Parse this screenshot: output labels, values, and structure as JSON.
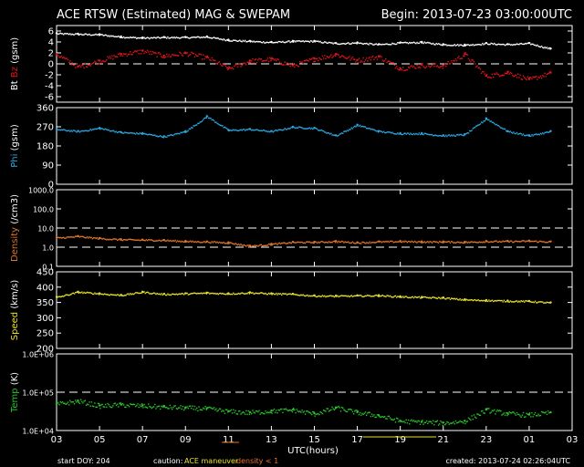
{
  "header": {
    "title": "ACE RTSW (Estimated) MAG & SWEPAM",
    "begin": "Begin: 2013-07-23 03:00:00UTC"
  },
  "footer": {
    "start_doy": "start DOY: 204",
    "caution_label": "caution:",
    "caution_maneuver": "ACE maneuver",
    "caution_density": "density < 1",
    "created": "created: 2013-07-24 02:26:04UTC"
  },
  "colors": {
    "bt": "#ffffff",
    "bz": "#e0141a",
    "phi": "#29a8e0",
    "density": "#e0742a",
    "speed": "#e8e22a",
    "temp": "#27c42a",
    "maneuver": "#e8e22a",
    "density_caution": "#e0742a",
    "frame": "#ffffff"
  },
  "chart_data": [
    {
      "type": "scatter",
      "name": "mag",
      "ylabel_parts": [
        {
          "text": "Bt",
          "color": "#ffffff"
        },
        {
          "text": "Bz",
          "color": "#e0141a"
        },
        {
          "text": "(gsm)",
          "color": "#ffffff"
        }
      ],
      "ylim": [
        -7,
        7
      ],
      "yticks": [
        -6,
        -4,
        -2,
        0,
        2,
        4,
        6
      ],
      "ytick_labels": [
        "-6",
        "-4",
        "-2",
        "0",
        "2",
        "4",
        "6"
      ],
      "dashed_lines": [
        0
      ],
      "series": [
        {
          "color_key": "bt",
          "x": [
            0,
            1,
            2,
            3,
            4,
            5,
            6,
            7,
            8,
            9,
            10,
            11,
            12,
            13,
            14,
            15,
            16,
            17,
            18,
            19,
            20,
            21,
            22,
            23
          ],
          "y": [
            5.6,
            5.5,
            5.4,
            5.0,
            4.8,
            4.9,
            4.9,
            5.0,
            4.4,
            4.2,
            4.0,
            4.2,
            4.2,
            3.8,
            3.9,
            3.6,
            3.9,
            4.0,
            3.6,
            3.5,
            3.8,
            3.6,
            3.8,
            2.8
          ]
        },
        {
          "color_key": "bz",
          "x": [
            0,
            1,
            2,
            3,
            4,
            5,
            6,
            7,
            8,
            9,
            10,
            11,
            12,
            13,
            14,
            15,
            16,
            17,
            18,
            19,
            20,
            21,
            22,
            23
          ],
          "y": [
            1.8,
            -0.5,
            0.6,
            1.8,
            2.4,
            1.5,
            2.0,
            1.2,
            -0.8,
            0.6,
            0.9,
            -0.3,
            1.0,
            1.8,
            0.7,
            1.4,
            -0.8,
            -0.2,
            -0.3,
            1.8,
            -2.2,
            -1.5,
            -2.8,
            -1.6
          ]
        }
      ]
    },
    {
      "type": "scatter",
      "name": "phi",
      "ylabel_parts": [
        {
          "text": "Phi",
          "color": "#29a8e0"
        },
        {
          "text": "(gsm)",
          "color": "#ffffff"
        }
      ],
      "ylim": [
        0,
        360
      ],
      "yticks": [
        0,
        90,
        180,
        270,
        360
      ],
      "ytick_labels": [
        "0",
        "90",
        "180",
        "270",
        "360"
      ],
      "dashed_lines": [],
      "series": [
        {
          "color_key": "phi",
          "x": [
            0,
            1,
            2,
            3,
            4,
            5,
            6,
            7,
            8,
            9,
            10,
            11,
            12,
            13,
            14,
            15,
            16,
            17,
            18,
            19,
            20,
            21,
            22,
            23
          ],
          "y": [
            260,
            250,
            265,
            245,
            240,
            225,
            250,
            320,
            255,
            260,
            250,
            270,
            265,
            230,
            280,
            250,
            240,
            240,
            230,
            235,
            310,
            250,
            230,
            250
          ]
        }
      ]
    },
    {
      "type": "scatter",
      "name": "density",
      "ylabel_parts": [
        {
          "text": "Density",
          "color": "#e0742a"
        },
        {
          "text": "(/cm3)",
          "color": "#ffffff"
        }
      ],
      "yscale": "log",
      "ylim": [
        0.1,
        1000
      ],
      "yticks": [
        0.1,
        1,
        10,
        100,
        1000
      ],
      "ytick_labels": [
        "0.1",
        "1.0",
        "10.0",
        "100.0",
        "1000.0"
      ],
      "dashed_lines": [
        1,
        10
      ],
      "series": [
        {
          "color_key": "density",
          "x": [
            0,
            1,
            2,
            3,
            4,
            5,
            6,
            7,
            8,
            9,
            10,
            11,
            12,
            13,
            14,
            15,
            16,
            17,
            18,
            19,
            20,
            21,
            22,
            23
          ],
          "y": [
            3.2,
            3.8,
            3.0,
            2.6,
            2.5,
            2.4,
            2.1,
            2.0,
            1.8,
            1.2,
            1.5,
            1.9,
            1.9,
            2.1,
            1.8,
            2.0,
            2.1,
            2.0,
            2.0,
            1.9,
            2.1,
            2.1,
            2.2,
            2.0
          ]
        }
      ]
    },
    {
      "type": "scatter",
      "name": "speed",
      "ylabel_parts": [
        {
          "text": "Speed",
          "color": "#e8e22a"
        },
        {
          "text": "(km/s)",
          "color": "#ffffff"
        }
      ],
      "ylim": [
        200,
        450
      ],
      "yticks": [
        200,
        250,
        300,
        350,
        400,
        450
      ],
      "ytick_labels": [
        "200",
        "250",
        "300",
        "350",
        "400",
        "450"
      ],
      "dashed_lines": [],
      "series": [
        {
          "color_key": "speed",
          "x": [
            0,
            1,
            2,
            3,
            4,
            5,
            6,
            7,
            8,
            9,
            10,
            11,
            12,
            13,
            14,
            15,
            16,
            17,
            18,
            19,
            20,
            21,
            22,
            23
          ],
          "y": [
            368,
            385,
            380,
            375,
            385,
            378,
            380,
            382,
            380,
            383,
            380,
            378,
            373,
            372,
            373,
            374,
            370,
            368,
            366,
            360,
            358,
            356,
            355,
            350
          ]
        }
      ]
    },
    {
      "type": "scatter",
      "name": "temp",
      "ylabel_parts": [
        {
          "text": "Temp",
          "color": "#27c42a"
        },
        {
          "text": "(K)",
          "color": "#ffffff"
        }
      ],
      "yscale": "log",
      "ylim": [
        10000,
        1000000
      ],
      "yticks": [
        10000,
        100000,
        1000000
      ],
      "ytick_labels": [
        "1.0E+04",
        "1.0E+05",
        "1.0E+06"
      ],
      "dashed_lines": [
        100000
      ],
      "series": [
        {
          "color_key": "temp",
          "x": [
            0,
            1,
            2,
            3,
            4,
            5,
            6,
            7,
            8,
            9,
            10,
            11,
            12,
            13,
            14,
            15,
            16,
            17,
            18,
            19,
            20,
            21,
            22,
            23
          ],
          "y": [
            50000,
            60000,
            45000,
            48000,
            45000,
            42000,
            40000,
            38000,
            32000,
            30000,
            33000,
            35000,
            28000,
            40000,
            30000,
            25000,
            18000,
            17000,
            16000,
            18000,
            35000,
            28000,
            26000,
            30000
          ]
        }
      ]
    }
  ],
  "x_axis": {
    "xlim": [
      0,
      24
    ],
    "tick_hours": [
      0,
      2,
      4,
      6,
      8,
      10,
      12,
      14,
      16,
      18,
      20,
      22,
      24
    ],
    "tick_labels": [
      "03",
      "05",
      "07",
      "09",
      "11",
      "13",
      "15",
      "17",
      "19",
      "21",
      "23",
      "01",
      "03"
    ],
    "xlabel": "UTC(hours)"
  }
}
